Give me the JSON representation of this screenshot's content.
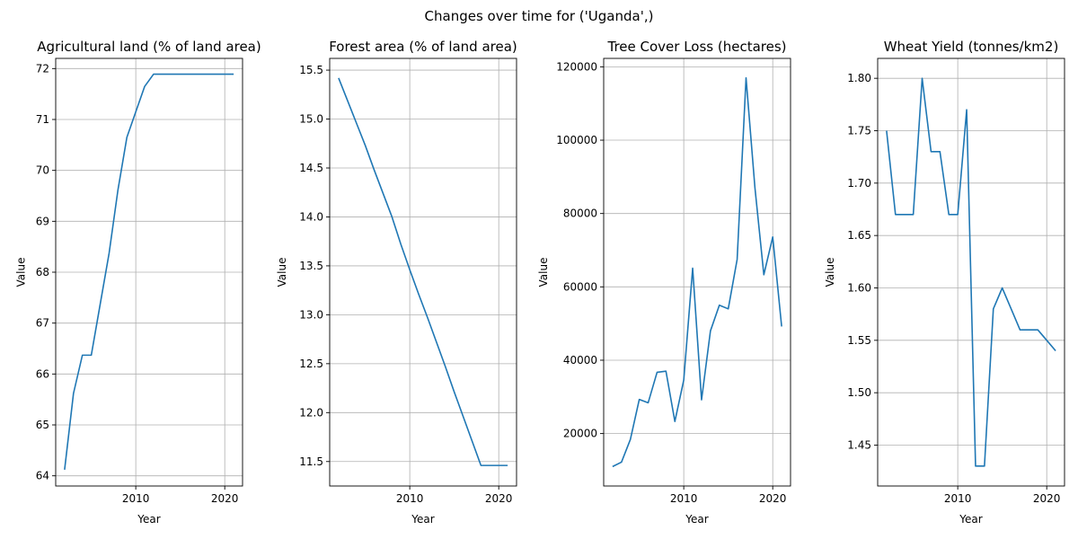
{
  "figure": {
    "suptitle": "Changes over time for ('Uganda',)"
  },
  "chart_data": [
    {
      "type": "line",
      "title": "Agricultural land (% of land area)",
      "xlabel": "Year",
      "ylabel": "Value",
      "xlim": [
        2001,
        2022
      ],
      "ylim": [
        63.8,
        72.2
      ],
      "xticks": [
        2010,
        2020
      ],
      "yticks": [
        64,
        65,
        66,
        67,
        68,
        69,
        70,
        71,
        72
      ],
      "ytick_labels": [
        "64",
        "65",
        "66",
        "67",
        "68",
        "69",
        "70",
        "71",
        "72"
      ],
      "grid": true,
      "color": "#1f77b4",
      "x": [
        2002,
        2003,
        2004,
        2005,
        2006,
        2007,
        2008,
        2009,
        2010,
        2011,
        2012,
        2013,
        2014,
        2015,
        2016,
        2017,
        2018,
        2019,
        2020,
        2021
      ],
      "y": [
        64.12,
        65.62,
        66.37,
        66.37,
        67.37,
        68.37,
        69.62,
        70.65,
        71.15,
        71.65,
        71.89,
        71.89,
        71.89,
        71.89,
        71.89,
        71.89,
        71.89,
        71.89,
        71.89,
        71.89
      ]
    },
    {
      "type": "line",
      "title": "Forest area (% of land area)",
      "xlabel": "Year",
      "ylabel": "Value",
      "xlim": [
        2001,
        2022
      ],
      "ylim": [
        11.25,
        15.62
      ],
      "xticks": [
        2010,
        2020
      ],
      "yticks": [
        11.5,
        12.0,
        12.5,
        13.0,
        13.5,
        14.0,
        14.5,
        15.0,
        15.5
      ],
      "ytick_labels": [
        "11.5",
        "12.0",
        "12.5",
        "13.0",
        "13.5",
        "14.0",
        "14.5",
        "15.0",
        "15.5"
      ],
      "grid": true,
      "color": "#1f77b4",
      "x": [
        2002,
        2003,
        2004,
        2005,
        2006,
        2007,
        2008,
        2009,
        2010,
        2011,
        2012,
        2013,
        2014,
        2015,
        2016,
        2017,
        2018,
        2019,
        2020,
        2021
      ],
      "y": [
        15.42,
        15.19,
        14.96,
        14.73,
        14.48,
        14.24,
        14.0,
        13.72,
        13.46,
        13.21,
        12.97,
        12.72,
        12.47,
        12.21,
        11.96,
        11.71,
        11.46,
        11.46,
        11.46,
        11.46
      ]
    },
    {
      "type": "line",
      "title": "Tree Cover Loss (hectares)",
      "xlabel": "Year",
      "ylabel": "Value",
      "xlim": [
        2001,
        2022
      ],
      "ylim": [
        5700,
        122300
      ],
      "xticks": [
        2010,
        2020
      ],
      "yticks": [
        20000,
        40000,
        60000,
        80000,
        100000,
        120000
      ],
      "ytick_labels": [
        "20000",
        "40000",
        "60000",
        "80000",
        "100000",
        "120000"
      ],
      "grid": true,
      "color": "#1f77b4",
      "x": [
        2002,
        2003,
        2004,
        2005,
        2006,
        2007,
        2008,
        2009,
        2010,
        2011,
        2012,
        2013,
        2014,
        2015,
        2016,
        2017,
        2018,
        2019,
        2020,
        2021
      ],
      "y": [
        11000,
        12200,
        18400,
        29300,
        28400,
        36700,
        37000,
        23300,
        34600,
        65100,
        29200,
        48000,
        55000,
        54000,
        67500,
        117000,
        87000,
        63300,
        73600,
        49200
      ]
    },
    {
      "type": "line",
      "title": "Wheat Yield (tonnes/km2)",
      "xlabel": "Year",
      "ylabel": "Value",
      "xlim": [
        2001,
        2022
      ],
      "ylim": [
        1.411,
        1.819
      ],
      "xticks": [
        2010,
        2020
      ],
      "yticks": [
        1.45,
        1.5,
        1.55,
        1.6,
        1.65,
        1.7,
        1.75,
        1.8
      ],
      "ytick_labels": [
        "1.45",
        "1.50",
        "1.55",
        "1.60",
        "1.65",
        "1.70",
        "1.75",
        "1.80"
      ],
      "grid": true,
      "color": "#1f77b4",
      "x": [
        2002,
        2003,
        2004,
        2005,
        2006,
        2007,
        2008,
        2009,
        2010,
        2011,
        2012,
        2013,
        2014,
        2015,
        2016,
        2017,
        2018,
        2019,
        2020,
        2021
      ],
      "y": [
        1.75,
        1.67,
        1.67,
        1.67,
        1.8,
        1.73,
        1.73,
        1.67,
        1.67,
        1.77,
        1.43,
        1.43,
        1.58,
        1.6,
        1.58,
        1.56,
        1.56,
        1.56,
        1.55,
        1.54
      ]
    }
  ]
}
